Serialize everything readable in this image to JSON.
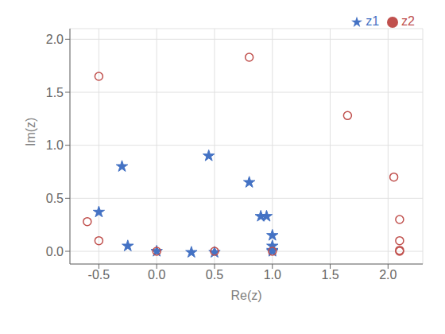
{
  "chart_data": {
    "type": "scatter",
    "x_label": "Re(z)",
    "y_label": "Im(z)",
    "xlim": [
      -0.75,
      2.3
    ],
    "ylim": [
      -0.12,
      2.1
    ],
    "xticks": [
      -0.5,
      {
        "value": 0.0,
        "label": "0.0"
      },
      0.5,
      {
        "value": 1.0,
        "label": "1.0"
      },
      1.5,
      {
        "value": 2.0,
        "label": "2.0"
      }
    ],
    "yticks": [
      {
        "value": 0.0,
        "label": "0.0"
      },
      0.5,
      {
        "value": 1.0,
        "label": "1.0"
      },
      1.5,
      {
        "value": 2.0,
        "label": "2.0"
      }
    ],
    "grid": true,
    "legend": "upper right",
    "series": [
      {
        "name": "z1",
        "color": "#4472C4",
        "marker": "star",
        "x": [
          -0.5,
          -0.3,
          -0.25,
          0.0,
          0.3,
          0.45,
          0.5,
          0.8,
          0.9,
          0.95,
          1.0,
          1.0,
          1.0,
          1.0
        ],
        "values": [
          0.37,
          0.8,
          0.05,
          0.0,
          -0.01,
          0.9,
          -0.01,
          0.65,
          0.33,
          0.33,
          0.15,
          0.05,
          0.01,
          0.0
        ]
      },
      {
        "name": "z2",
        "color": "#C0504D",
        "marker": "circle",
        "x": [
          -0.6,
          -0.5,
          -0.5,
          0.0,
          0.5,
          0.8,
          1.0,
          1.65,
          2.05,
          2.1,
          2.1,
          2.1,
          2.1
        ],
        "values": [
          0.28,
          1.65,
          0.1,
          0.0,
          0.0,
          1.83,
          0.0,
          1.28,
          0.7,
          0.3,
          0.1,
          0.01,
          0.0
        ]
      }
    ]
  }
}
